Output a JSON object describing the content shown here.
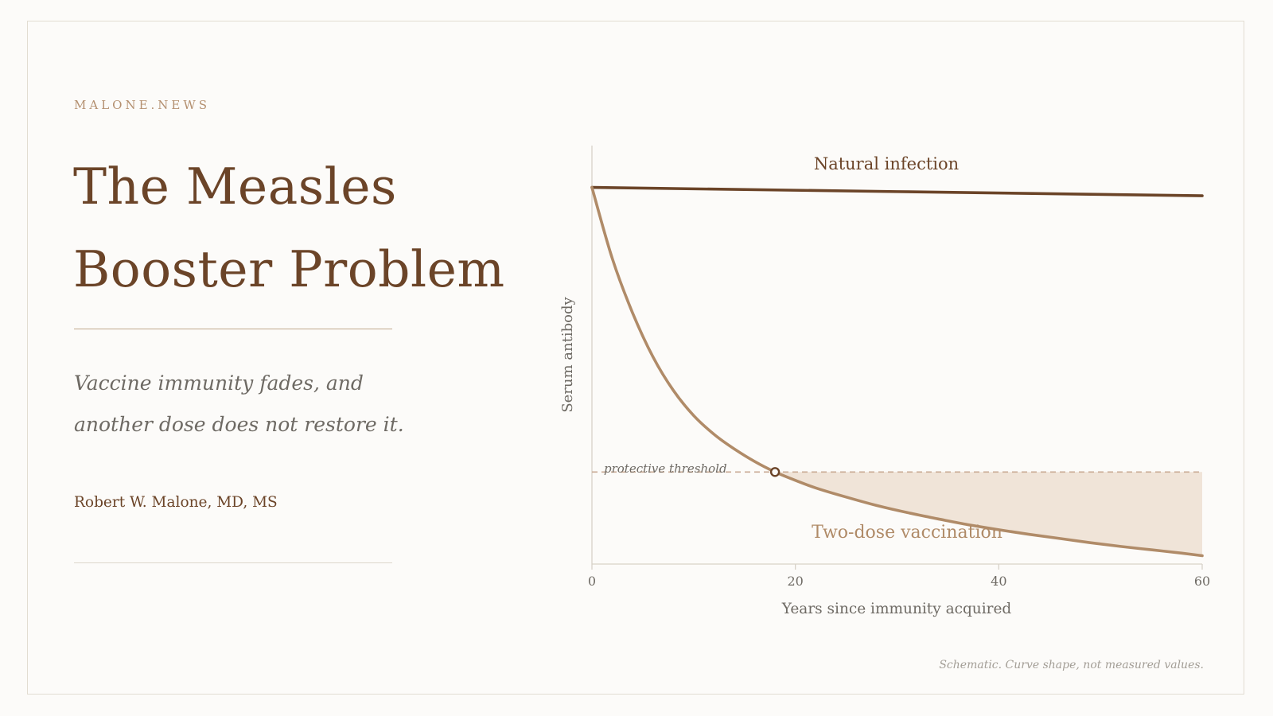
{
  "brand": "MALONE.NEWS",
  "title_lines": [
    "The Measles",
    "Booster Problem"
  ],
  "subtitle_lines": [
    "Vaccine immunity fades, and",
    "another dose does not restore it."
  ],
  "author": "Robert W. Malone, MD, MS",
  "footnote": "Schematic. Curve shape, not measured values.",
  "colors": {
    "primary": "#6b4428",
    "accent": "#b08b68",
    "fill": "#f0e4d8",
    "threshold": "#c9aa94",
    "muted_text": "#6e6a64"
  },
  "chart_data": {
    "type": "line",
    "xlabel": "Years since immunity acquired",
    "ylabel": "Serum antibody",
    "xlim": [
      0,
      60
    ],
    "ylim": [
      0,
      100
    ],
    "x_ticks": [
      0,
      20,
      40,
      60
    ],
    "grid": false,
    "series": [
      {
        "name": "Natural infection",
        "x": [
          0,
          60
        ],
        "y": [
          90,
          88
        ]
      },
      {
        "name": "Two-dose vaccination",
        "x": [
          0,
          2,
          4,
          6,
          8,
          10,
          12,
          14,
          16,
          18,
          20,
          22,
          25,
          28,
          31,
          34,
          37,
          40,
          43,
          46,
          49,
          52,
          55,
          58,
          60
        ],
        "y": [
          90,
          73,
          60,
          49.5,
          41.5,
          35.5,
          31,
          27.5,
          24.5,
          22,
          20,
          18.2,
          16,
          14,
          12.3,
          10.8,
          9.4,
          8.2,
          7.1,
          6.1,
          5.1,
          4.2,
          3.4,
          2.6,
          2
        ]
      }
    ],
    "threshold": {
      "label": "protective threshold",
      "y": 22,
      "crossing_x": 18
    }
  }
}
